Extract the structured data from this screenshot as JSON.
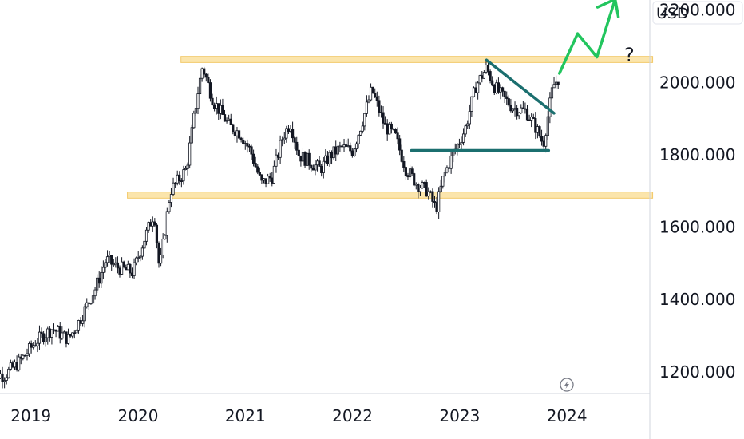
{
  "currency": "USD",
  "colors": {
    "candle": "#131722",
    "zone_fill": "#fbe3a4",
    "zone_stroke": "#f2c35a",
    "trendline": "#1b6f6f",
    "projection": "#22c55e",
    "price_line": "#2e7d6a",
    "grid": "#e0e3eb"
  },
  "icons": [
    "lightning-icon"
  ],
  "annotations": {
    "question": "?"
  },
  "chart_data": {
    "type": "candlestick",
    "title": "",
    "xlabel": "",
    "ylabel": "",
    "ylim": [
      1160,
      2250
    ],
    "xlim": [
      2018.6,
      2024.9
    ],
    "y_ticks": [
      {
        "value": 1200,
        "label": "1200.000"
      },
      {
        "value": 1400,
        "label": "1400.000"
      },
      {
        "value": 1600,
        "label": "1600.000"
      },
      {
        "value": 1800,
        "label": "1800.000"
      },
      {
        "value": 2000,
        "label": "2000.000"
      },
      {
        "value": 2200,
        "label": "2200.000"
      }
    ],
    "x_ticks": [
      {
        "value": 2019,
        "label": "2019"
      },
      {
        "value": 2020,
        "label": "2020"
      },
      {
        "value": 2021,
        "label": "2021"
      },
      {
        "value": 2022,
        "label": "2022"
      },
      {
        "value": 2023,
        "label": "2023"
      },
      {
        "value": 2024,
        "label": "2024"
      }
    ],
    "price_line": 2015,
    "zones": [
      {
        "name": "resistance-zone",
        "x0": 2020.4,
        "x1": 2024.8,
        "y0": 2055,
        "y1": 2072
      },
      {
        "name": "support-zone",
        "x0": 2019.9,
        "x1": 2024.8,
        "y0": 1680,
        "y1": 1697
      }
    ],
    "trendlines": [
      {
        "name": "descending-trendline",
        "points": [
          [
            2023.25,
            2062
          ],
          [
            2023.88,
            1915
          ]
        ]
      },
      {
        "name": "horizontal-support-line",
        "points": [
          [
            2022.55,
            1812
          ],
          [
            2023.83,
            1812
          ]
        ]
      }
    ],
    "projection": {
      "name": "projection-arrow",
      "points": [
        [
          2023.93,
          2025
        ],
        [
          2024.1,
          2135
        ],
        [
          2024.28,
          2070
        ],
        [
          2024.45,
          2230
        ]
      ]
    },
    "anchors": [
      [
        2018.6,
        1200
      ],
      [
        2018.75,
        1190
      ],
      [
        2018.9,
        1230
      ],
      [
        2019.05,
        1285
      ],
      [
        2019.2,
        1320
      ],
      [
        2019.35,
        1290
      ],
      [
        2019.45,
        1340
      ],
      [
        2019.6,
        1430
      ],
      [
        2019.7,
        1510
      ],
      [
        2019.8,
        1490
      ],
      [
        2019.95,
        1475
      ],
      [
        2020.05,
        1560
      ],
      [
        2020.15,
        1640
      ],
      [
        2020.2,
        1480
      ],
      [
        2020.3,
        1700
      ],
      [
        2020.45,
        1760
      ],
      [
        2020.55,
        1960
      ],
      [
        2020.6,
        2045
      ],
      [
        2020.7,
        1950
      ],
      [
        2020.85,
        1880
      ],
      [
        2020.95,
        1860
      ],
      [
        2021.05,
        1810
      ],
      [
        2021.15,
        1720
      ],
      [
        2021.25,
        1740
      ],
      [
        2021.35,
        1850
      ],
      [
        2021.42,
        1890
      ],
      [
        2021.5,
        1800
      ],
      [
        2021.6,
        1780
      ],
      [
        2021.7,
        1760
      ],
      [
        2021.8,
        1800
      ],
      [
        2021.9,
        1820
      ],
      [
        2022.0,
        1810
      ],
      [
        2022.1,
        1900
      ],
      [
        2022.18,
        1980
      ],
      [
        2022.3,
        1880
      ],
      [
        2022.4,
        1850
      ],
      [
        2022.5,
        1760
      ],
      [
        2022.6,
        1720
      ],
      [
        2022.7,
        1700
      ],
      [
        2022.78,
        1650
      ],
      [
        2022.85,
        1740
      ],
      [
        2022.95,
        1810
      ],
      [
        2023.05,
        1870
      ],
      [
        2023.15,
        1990
      ],
      [
        2023.25,
        2040
      ],
      [
        2023.32,
        1990
      ],
      [
        2023.4,
        1960
      ],
      [
        2023.5,
        1930
      ],
      [
        2023.62,
        1920
      ],
      [
        2023.72,
        1870
      ],
      [
        2023.78,
        1830
      ],
      [
        2023.83,
        1920
      ],
      [
        2023.87,
        1990
      ],
      [
        2023.93,
        2015
      ]
    ]
  }
}
